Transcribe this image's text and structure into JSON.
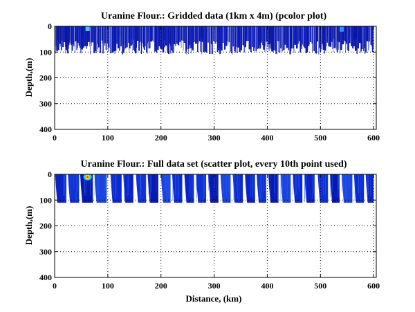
{
  "chart_data": [
    {
      "type": "heatmap",
      "title": "Uranine Flour.: Gridded data (1km x 4m) (pcolor plot)",
      "xlabel": "",
      "ylabel": "Depth,(m)",
      "xlim": [
        0,
        605
      ],
      "ylim": [
        400,
        0
      ],
      "y_reversed": true,
      "xticks": [
        0,
        100,
        200,
        300,
        400,
        500,
        600
      ],
      "yticks": [
        0,
        100,
        200,
        300,
        400
      ],
      "grid": true,
      "colormap": "jet",
      "data_depth_range": [
        0,
        110
      ],
      "data_x_range": [
        2,
        600
      ],
      "dominant_color": "#0a1ab8",
      "hotspots": [
        {
          "x": 62,
          "depth": 8,
          "level": "high"
        },
        {
          "x": 540,
          "depth": 10,
          "level": "medium"
        }
      ]
    },
    {
      "type": "scatter",
      "title": "Uranine Flour.: Full data set (scatter plot, every 10th point used)",
      "xlabel": "Distance, (km)",
      "ylabel": "Depth,(m)",
      "xlim": [
        0,
        605
      ],
      "ylim": [
        400,
        0
      ],
      "y_reversed": true,
      "xticks": [
        0,
        100,
        200,
        300,
        400,
        500,
        600
      ],
      "yticks": [
        0,
        100,
        200,
        300,
        400
      ],
      "grid": true,
      "colormap": "jet",
      "profile_depth": 110,
      "profiles": [
        {
          "x_start": 1,
          "x_end": 22
        },
        {
          "x_start": 25,
          "x_end": 46
        },
        {
          "x_start": 48,
          "x_end": 72
        },
        {
          "x_start": 75,
          "x_end": 98
        },
        {
          "x_start": 105,
          "x_end": 126
        },
        {
          "x_start": 129,
          "x_end": 148
        },
        {
          "x_start": 153,
          "x_end": 172
        },
        {
          "x_start": 175,
          "x_end": 195
        },
        {
          "x_start": 200,
          "x_end": 218
        },
        {
          "x_start": 221,
          "x_end": 240
        },
        {
          "x_start": 244,
          "x_end": 262
        },
        {
          "x_start": 266,
          "x_end": 285
        },
        {
          "x_start": 289,
          "x_end": 308
        },
        {
          "x_start": 312,
          "x_end": 331
        },
        {
          "x_start": 335,
          "x_end": 354
        },
        {
          "x_start": 358,
          "x_end": 377
        },
        {
          "x_start": 380,
          "x_end": 398
        },
        {
          "x_start": 402,
          "x_end": 421
        },
        {
          "x_start": 425,
          "x_end": 444
        },
        {
          "x_start": 448,
          "x_end": 466
        },
        {
          "x_start": 470,
          "x_end": 489
        },
        {
          "x_start": 495,
          "x_end": 514
        },
        {
          "x_start": 518,
          "x_end": 536
        },
        {
          "x_start": 540,
          "x_end": 560
        },
        {
          "x_start": 563,
          "x_end": 582
        },
        {
          "x_start": 585,
          "x_end": 600
        }
      ],
      "dominant_color": "#0a22c8",
      "hotspots": [
        {
          "x": 62,
          "depth": 10,
          "level": "high"
        }
      ]
    }
  ]
}
